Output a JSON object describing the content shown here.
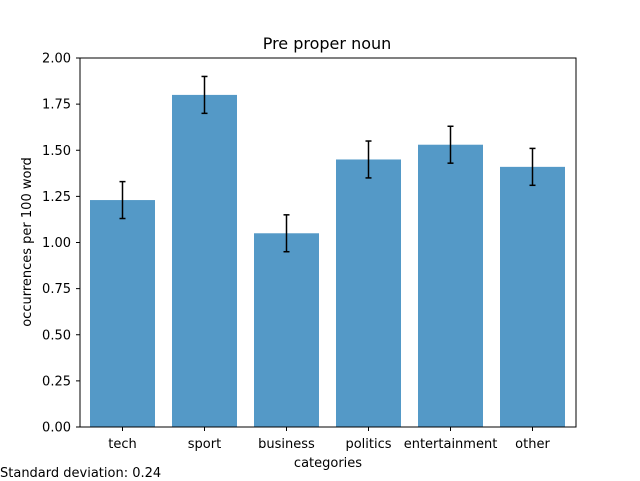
{
  "chart_data": {
    "type": "bar",
    "title": "Pre proper noun",
    "xlabel": "categories",
    "ylabel": "occurrences per 100 word",
    "categories": [
      "tech",
      "sport",
      "business",
      "politics",
      "entertainment",
      "other"
    ],
    "values": [
      1.23,
      1.8,
      1.05,
      1.45,
      1.53,
      1.41
    ],
    "errors": [
      0.1,
      0.1,
      0.1,
      0.1,
      0.1,
      0.1
    ],
    "ylim": [
      0,
      2.0
    ],
    "yticks": [
      "0.00",
      "0.25",
      "0.50",
      "0.75",
      "1.00",
      "1.25",
      "1.50",
      "1.75",
      "2.00"
    ],
    "grid": false,
    "bar_color": "#5499c7"
  },
  "footnote": "Standard deviation: 0.24"
}
